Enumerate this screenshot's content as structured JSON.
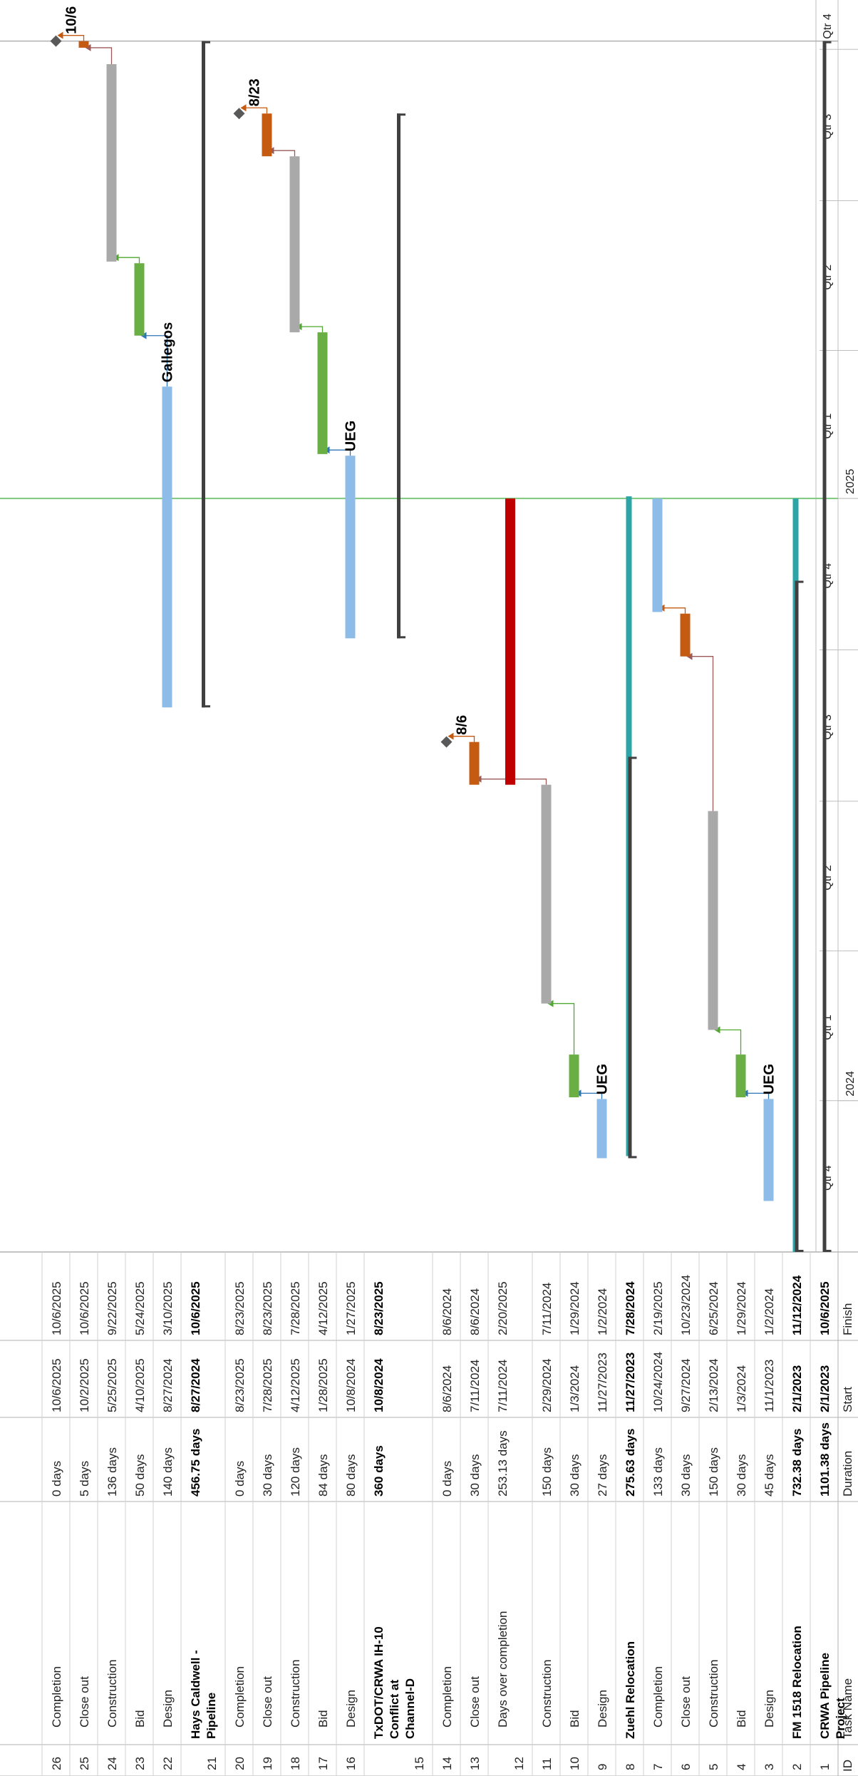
{
  "table": {
    "headers": {
      "id": "ID",
      "name": "Task Name",
      "duration": "Duration",
      "start": "Start",
      "finish": "Finish"
    }
  },
  "timescale": {
    "years": [
      {
        "label": "2024",
        "date": "2024-01-01"
      },
      {
        "label": "2025",
        "date": "2025-01-01"
      }
    ],
    "quarters": [
      {
        "label": "Qtr 4",
        "date": "2023-10-01"
      },
      {
        "label": "Qtr 1",
        "date": "2024-01-01"
      },
      {
        "label": "Qtr 2",
        "date": "2024-04-01"
      },
      {
        "label": "Qtr 3",
        "date": "2024-07-01"
      },
      {
        "label": "Qtr 4",
        "date": "2024-10-01"
      },
      {
        "label": "Qtr 1",
        "date": "2025-01-01"
      },
      {
        "label": "Qtr 2",
        "date": "2025-04-01"
      },
      {
        "label": "Qtr 3",
        "date": "2025-07-01"
      },
      {
        "label": "Qtr 4",
        "date": "2025-10-01"
      }
    ],
    "today_line": "2025-01-01",
    "project_finish_line": "2025-10-06"
  },
  "colors": {
    "design": "#8dbce9",
    "bid": "#6aaf44",
    "construction": "#a9a9a9",
    "closeout": "#c55a11",
    "summary": "#404040",
    "fm_bar": "#2ba5a8",
    "overrun": "#c00000",
    "milestone": "#595959",
    "today": "#7ec87e",
    "grid": "#bfbfbf",
    "link_blue": "#2e75b6",
    "link_green": "#4ea72e",
    "link_red": "#9b5a5a",
    "link_orange": "#c55a11"
  },
  "chart_data": {
    "type": "gantt",
    "x_axis": {
      "min": "2023-10-01",
      "max": "2025-10-31"
    },
    "tasks": [
      {
        "id": "1",
        "name": "CRWA Pipeline Project",
        "duration": "1101.38 days",
        "start": "2/1/2023",
        "finish": "10/6/2025",
        "bold": true,
        "kind": "summary",
        "bar_start": "2023-10-01",
        "bar_end": "2025-10-06"
      },
      {
        "id": "2",
        "name": "FM 1518 Relocation",
        "duration": "732.38 days",
        "start": "2/1/2023",
        "finish": "11/12/2024",
        "bold": true,
        "kind": "summary",
        "bar_start": "2023-10-01",
        "bar_end": "2024-11-12"
      },
      {
        "id": "3",
        "name": "Design",
        "duration": "45 days",
        "start": "11/1/2023",
        "finish": "1/2/2024",
        "kind": "design",
        "bar_start": "2023-11-01",
        "bar_end": "2024-01-02",
        "label": "UEG"
      },
      {
        "id": "4",
        "name": "Bid",
        "duration": "30 days",
        "start": "1/3/2024",
        "finish": "1/29/2024",
        "kind": "bid",
        "bar_start": "2024-01-03",
        "bar_end": "2024-01-29"
      },
      {
        "id": "5",
        "name": "Construction",
        "duration": "150 days",
        "start": "2/13/2024",
        "finish": "6/25/2024",
        "kind": "construction",
        "bar_start": "2024-02-13",
        "bar_end": "2024-06-25"
      },
      {
        "id": "6",
        "name": "Close out",
        "duration": "30 days",
        "start": "9/27/2024",
        "finish": "10/23/2024",
        "kind": "closeout",
        "bar_start": "2024-09-27",
        "bar_end": "2024-10-23"
      },
      {
        "id": "7",
        "name": "Completion",
        "duration": "133 days",
        "start": "10/24/2024",
        "finish": "2/19/2025",
        "kind": "design",
        "bar_start": "2024-10-24",
        "bar_end": "2025-01-01"
      },
      {
        "id": "8",
        "name": "Zuehl Relocation",
        "duration": "275.63 days",
        "start": "11/27/2023",
        "finish": "7/28/2024",
        "bold": true,
        "kind": "summary",
        "bar_start": "2023-11-27",
        "bar_end": "2024-07-28"
      },
      {
        "id": "9",
        "name": "Design",
        "duration": "27 days",
        "start": "11/27/2023",
        "finish": "1/2/2024",
        "kind": "design",
        "bar_start": "2023-11-27",
        "bar_end": "2024-01-02",
        "label": "UEG"
      },
      {
        "id": "10",
        "name": "Bid",
        "duration": "30 days",
        "start": "1/3/2024",
        "finish": "1/29/2024",
        "kind": "bid",
        "bar_start": "2024-01-03",
        "bar_end": "2024-01-29"
      },
      {
        "id": "11",
        "name": "Construction",
        "duration": "150 days",
        "start": "2/29/2024",
        "finish": "7/11/2024",
        "kind": "construction",
        "bar_start": "2024-02-29",
        "bar_end": "2024-07-11"
      },
      {
        "id": "12",
        "name": "Days over completion",
        "duration": "253.13 days",
        "start": "7/11/2024",
        "finish": "2/20/2025",
        "kind": "overrun",
        "bar_start": "2024-07-11",
        "bar_end": "2025-01-01"
      },
      {
        "id": "13",
        "name": "Close out",
        "duration": "30 days",
        "start": "7/11/2024",
        "finish": "8/6/2024",
        "kind": "closeout",
        "bar_start": "2024-07-11",
        "bar_end": "2024-08-06"
      },
      {
        "id": "14",
        "name": "Completion",
        "duration": "0 days",
        "start": "8/6/2024",
        "finish": "8/6/2024",
        "kind": "milestone",
        "bar_start": "2024-08-06",
        "bar_end": "2024-08-06",
        "label": "8/6"
      },
      {
        "id": "15",
        "name": "TxDOT/CRWA IH-10 Conflict at Channel-D",
        "duration": "360 days",
        "start": "10/8/2024",
        "finish": "8/23/2025",
        "bold": true,
        "kind": "summary",
        "bar_start": "2024-10-08",
        "bar_end": "2025-08-23"
      },
      {
        "id": "16",
        "name": "Design",
        "duration": "80 days",
        "start": "10/8/2024",
        "finish": "1/27/2025",
        "kind": "design",
        "bar_start": "2024-10-08",
        "bar_end": "2025-01-27",
        "label": "UEG"
      },
      {
        "id": "17",
        "name": "Bid",
        "duration": "84 days",
        "start": "1/28/2025",
        "finish": "4/12/2025",
        "kind": "bid",
        "bar_start": "2025-01-28",
        "bar_end": "2025-04-12"
      },
      {
        "id": "18",
        "name": "Construction",
        "duration": "120 days",
        "start": "4/12/2025",
        "finish": "7/28/2025",
        "kind": "construction",
        "bar_start": "2025-04-12",
        "bar_end": "2025-07-28"
      },
      {
        "id": "19",
        "name": "Close out",
        "duration": "30 days",
        "start": "7/28/2025",
        "finish": "8/23/2025",
        "kind": "closeout",
        "bar_start": "2025-07-28",
        "bar_end": "2025-08-23"
      },
      {
        "id": "20",
        "name": "Completion",
        "duration": "0 days",
        "start": "8/23/2025",
        "finish": "8/23/2025",
        "kind": "milestone",
        "bar_start": "2025-08-23",
        "bar_end": "2025-08-23",
        "label": "8/23"
      },
      {
        "id": "21",
        "name": "Hays Caldwell - Pipeline",
        "duration": "456.75 days",
        "start": "8/27/2024",
        "finish": "10/6/2025",
        "bold": true,
        "kind": "summary",
        "bar_start": "2024-08-27",
        "bar_end": "2025-10-06"
      },
      {
        "id": "22",
        "name": "Design",
        "duration": "140 days",
        "start": "8/27/2024",
        "finish": "3/10/2025",
        "kind": "design",
        "bar_start": "2024-08-27",
        "bar_end": "2025-03-10",
        "label": "Gallegos"
      },
      {
        "id": "23",
        "name": "Bid",
        "duration": "50 days",
        "start": "4/10/2025",
        "finish": "5/24/2025",
        "kind": "bid",
        "bar_start": "2025-04-10",
        "bar_end": "2025-05-24"
      },
      {
        "id": "24",
        "name": "Construction",
        "duration": "136 days",
        "start": "5/25/2025",
        "finish": "9/22/2025",
        "kind": "construction",
        "bar_start": "2025-05-25",
        "bar_end": "2025-09-22"
      },
      {
        "id": "25",
        "name": "Close out",
        "duration": "5 days",
        "start": "10/2/2025",
        "finish": "10/6/2025",
        "kind": "closeout",
        "bar_start": "2025-10-02",
        "bar_end": "2025-10-06"
      },
      {
        "id": "26",
        "name": "Completion",
        "duration": "0 days",
        "start": "10/6/2025",
        "finish": "10/6/2025",
        "kind": "milestone",
        "bar_start": "2025-10-06",
        "bar_end": "2025-10-06",
        "label": "10/6"
      }
    ],
    "links": [
      {
        "from": "3",
        "to": "4",
        "kind": "link_blue"
      },
      {
        "from": "4",
        "to": "5",
        "kind": "link_green"
      },
      {
        "from": "5",
        "to": "6",
        "kind": "link_red"
      },
      {
        "from": "6",
        "to": "7",
        "kind": "link_orange"
      },
      {
        "from": "9",
        "to": "10",
        "kind": "link_blue"
      },
      {
        "from": "10",
        "to": "11",
        "kind": "link_green"
      },
      {
        "from": "11",
        "to": "13",
        "kind": "link_red"
      },
      {
        "from": "13",
        "to": "14",
        "kind": "link_orange"
      },
      {
        "from": "16",
        "to": "17",
        "kind": "link_blue"
      },
      {
        "from": "17",
        "to": "18",
        "kind": "link_green"
      },
      {
        "from": "18",
        "to": "19",
        "kind": "link_red"
      },
      {
        "from": "19",
        "to": "20",
        "kind": "link_orange"
      },
      {
        "from": "22",
        "to": "23",
        "kind": "link_blue"
      },
      {
        "from": "23",
        "to": "24",
        "kind": "link_green"
      },
      {
        "from": "24",
        "to": "25",
        "kind": "link_red"
      },
      {
        "from": "25",
        "to": "26",
        "kind": "link_orange"
      }
    ]
  }
}
